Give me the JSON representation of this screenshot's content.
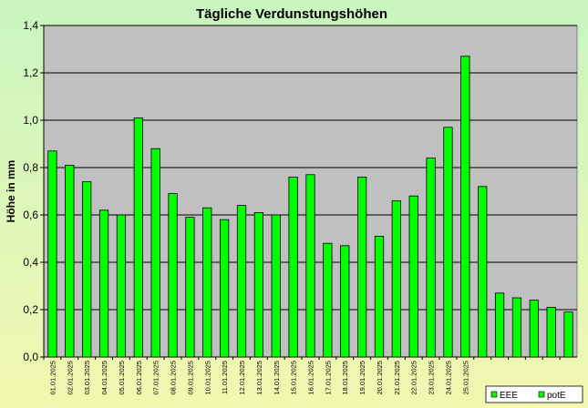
{
  "chart_data": {
    "type": "bar",
    "title": "Tägliche Verdunstungshöhen",
    "ylabel": "Höhe in mm",
    "xlabel": "",
    "ylim": [
      0,
      1.4
    ],
    "yticks": [
      "0,0",
      "0,2",
      "0,4",
      "0,6",
      "0,8",
      "1,0",
      "1,2",
      "1,4"
    ],
    "grid": true,
    "legend_position": "bottom-right",
    "colors": {
      "plot_background": "#c0c0c0",
      "bar_fill": "#00ff00",
      "bar_stroke": "#000000",
      "gridline": "#000000"
    },
    "categories": [
      "01.01.2025",
      "02.01.2025",
      "03.01.2025",
      "04.01.2025",
      "05.01.2025",
      "06.01.2025",
      "07.01.2025",
      "08.01.2025",
      "09.01.2025",
      "10.01.2025",
      "11.01.2025",
      "12.01.2025",
      "13.01.2025",
      "14.01.2025",
      "15.01.2025",
      "16.01.2025",
      "17.01.2025",
      "18.01.2025",
      "19.01.2025",
      "20.01.2025",
      "21.01.2025",
      "22.01.2025",
      "23.01.2025",
      "24.01.2025",
      "25.01.2025",
      "",
      "",
      "",
      "",
      "",
      ""
    ],
    "series": [
      {
        "name": "EEE",
        "values": [
          null,
          null,
          null,
          null,
          null,
          null,
          null,
          null,
          null,
          null,
          null,
          null,
          null,
          null,
          null,
          null,
          null,
          null,
          null,
          null,
          null,
          null,
          null,
          null,
          null,
          null,
          null,
          null,
          null,
          null,
          null
        ]
      },
      {
        "name": "potE",
        "values": [
          0.87,
          0.81,
          0.74,
          0.62,
          0.6,
          1.01,
          0.88,
          0.69,
          0.59,
          0.63,
          0.58,
          0.64,
          0.61,
          0.6,
          0.76,
          0.77,
          0.48,
          0.47,
          0.76,
          0.51,
          0.66,
          0.68,
          0.84,
          0.97,
          1.27,
          0.72,
          0.27,
          0.25,
          0.24,
          0.21,
          0.19
        ]
      }
    ]
  }
}
